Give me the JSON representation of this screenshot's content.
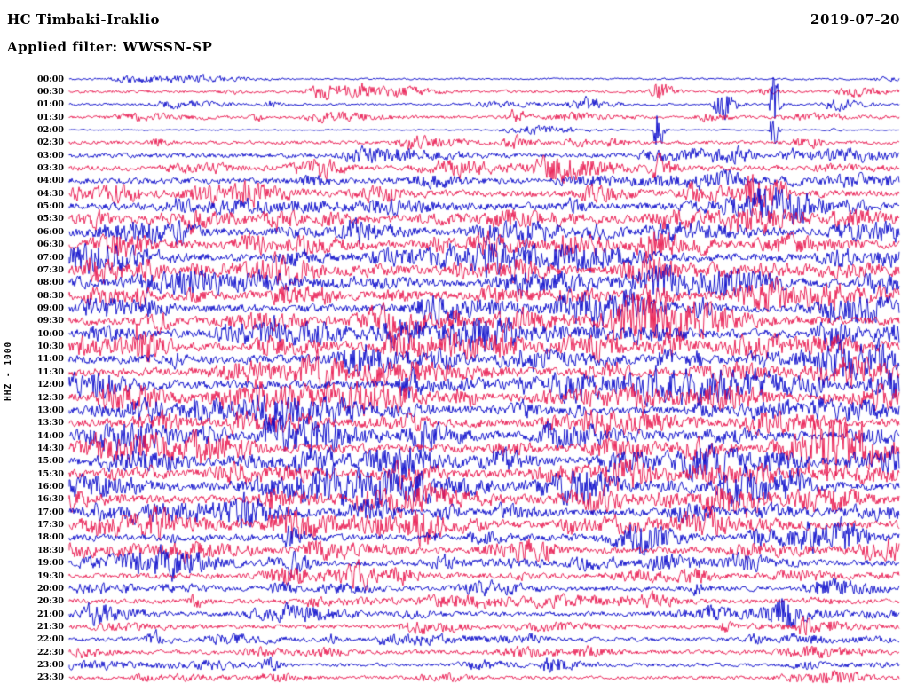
{
  "header": {
    "station": "HC Timbaki-Iraklio",
    "date": "2019-07-20",
    "filter": "Applied filter: WWSSN-SP",
    "axis_label": "HHZ - 1000"
  },
  "chart_data": {
    "type": "line",
    "subtype": "helicorder-seismogram",
    "title": "HC Timbaki-Iraklio",
    "date": "2019-07-20",
    "filter": "WWSSN-SP",
    "channel": "HHZ - 1000",
    "row_interval_minutes": 30,
    "x_axis": "time within each 30-minute row",
    "grid": false,
    "legend": false,
    "colors": {
      "blue": "#0000c8",
      "red": "#e8114a"
    },
    "rows": [
      {
        "t": "00:00",
        "color": "blue",
        "base": 0.8,
        "density": 5,
        "burst": 2.5
      },
      {
        "t": "00:30",
        "color": "red",
        "base": 1.2,
        "density": 8,
        "burst": 3
      },
      {
        "t": "01:00",
        "color": "blue",
        "base": 1.0,
        "density": 7,
        "burst": 3
      },
      {
        "t": "01:30",
        "color": "red",
        "base": 1.2,
        "density": 8,
        "burst": 3
      },
      {
        "t": "02:00",
        "color": "blue",
        "base": 0.6,
        "density": 4,
        "burst": 2
      },
      {
        "t": "02:30",
        "color": "red",
        "base": 1.6,
        "density": 9,
        "burst": 3
      },
      {
        "t": "03:00",
        "color": "blue",
        "base": 2.0,
        "density": 10,
        "burst": 3.5
      },
      {
        "t": "03:30",
        "color": "red",
        "base": 2.3,
        "density": 11,
        "burst": 4
      },
      {
        "t": "04:00",
        "color": "blue",
        "base": 2.6,
        "density": 12,
        "burst": 4.5
      },
      {
        "t": "04:30",
        "color": "red",
        "base": 2.8,
        "density": 12,
        "burst": 5
      },
      {
        "t": "05:00",
        "color": "blue",
        "base": 3.0,
        "density": 13,
        "burst": 5
      },
      {
        "t": "05:30",
        "color": "red",
        "base": 3.2,
        "density": 14,
        "burst": 5.5
      },
      {
        "t": "06:00",
        "color": "blue",
        "base": 3.4,
        "density": 14,
        "burst": 5.5
      },
      {
        "t": "06:30",
        "color": "red",
        "base": 3.4,
        "density": 14,
        "burst": 6
      },
      {
        "t": "07:00",
        "color": "blue",
        "base": 3.5,
        "density": 15,
        "burst": 6
      },
      {
        "t": "07:30",
        "color": "red",
        "base": 3.5,
        "density": 16,
        "burst": 6
      },
      {
        "t": "08:00",
        "color": "blue",
        "base": 3.5,
        "density": 16,
        "burst": 6
      },
      {
        "t": "08:30",
        "color": "red",
        "base": 3.5,
        "density": 16,
        "burst": 6
      },
      {
        "t": "09:00",
        "color": "blue",
        "base": 3.5,
        "density": 16,
        "burst": 6
      },
      {
        "t": "09:30",
        "color": "red",
        "base": 3.5,
        "density": 16,
        "burst": 6
      },
      {
        "t": "10:00",
        "color": "blue",
        "base": 3.6,
        "density": 16,
        "burst": 6.5
      },
      {
        "t": "10:30",
        "color": "red",
        "base": 3.6,
        "density": 17,
        "burst": 6.5
      },
      {
        "t": "11:00",
        "color": "blue",
        "base": 3.6,
        "density": 16,
        "burst": 6
      },
      {
        "t": "11:30",
        "color": "red",
        "base": 3.6,
        "density": 16,
        "burst": 6
      },
      {
        "t": "12:00",
        "color": "blue",
        "base": 3.6,
        "density": 16,
        "burst": 6.5
      },
      {
        "t": "12:30",
        "color": "red",
        "base": 3.6,
        "density": 17,
        "burst": 7
      },
      {
        "t": "13:00",
        "color": "blue",
        "base": 3.6,
        "density": 16,
        "burst": 6
      },
      {
        "t": "13:30",
        "color": "red",
        "base": 3.6,
        "density": 16,
        "burst": 6.5
      },
      {
        "t": "14:00",
        "color": "blue",
        "base": 3.6,
        "density": 16,
        "burst": 6
      },
      {
        "t": "14:30",
        "color": "red",
        "base": 3.6,
        "density": 16,
        "burst": 6.5
      },
      {
        "t": "15:00",
        "color": "blue",
        "base": 3.6,
        "density": 16,
        "burst": 6.5
      },
      {
        "t": "15:30",
        "color": "red",
        "base": 3.6,
        "density": 16,
        "burst": 6
      },
      {
        "t": "16:00",
        "color": "blue",
        "base": 3.6,
        "density": 16,
        "burst": 6.5
      },
      {
        "t": "16:30",
        "color": "red",
        "base": 3.4,
        "density": 16,
        "burst": 6
      },
      {
        "t": "17:00",
        "color": "blue",
        "base": 3.3,
        "density": 15,
        "burst": 5.5
      },
      {
        "t": "17:30",
        "color": "red",
        "base": 3.3,
        "density": 15,
        "burst": 6
      },
      {
        "t": "18:00",
        "color": "blue",
        "base": 3.0,
        "density": 13,
        "burst": 5
      },
      {
        "t": "18:30",
        "color": "red",
        "base": 3.0,
        "density": 13,
        "burst": 5
      },
      {
        "t": "19:00",
        "color": "blue",
        "base": 2.7,
        "density": 12,
        "burst": 5
      },
      {
        "t": "19:30",
        "color": "red",
        "base": 2.4,
        "density": 11,
        "burst": 4
      },
      {
        "t": "20:00",
        "color": "blue",
        "base": 2.1,
        "density": 10,
        "burst": 4
      },
      {
        "t": "20:30",
        "color": "red",
        "base": 2.1,
        "density": 10,
        "burst": 4
      },
      {
        "t": "21:00",
        "color": "blue",
        "base": 2.0,
        "density": 10,
        "burst": 4.5
      },
      {
        "t": "21:30",
        "color": "red",
        "base": 1.8,
        "density": 9,
        "burst": 3.5
      },
      {
        "t": "22:00",
        "color": "blue",
        "base": 1.8,
        "density": 9,
        "burst": 3.5
      },
      {
        "t": "22:30",
        "color": "red",
        "base": 1.8,
        "density": 9,
        "burst": 3.5
      },
      {
        "t": "23:00",
        "color": "blue",
        "base": 1.5,
        "density": 7,
        "burst": 3
      },
      {
        "t": "23:30",
        "color": "red",
        "base": 1.5,
        "density": 7,
        "burst": 3
      }
    ],
    "events": [
      {
        "row": 2,
        "x": 0.846,
        "amp": 30
      },
      {
        "row": 4,
        "x": 0.846,
        "amp": 18
      },
      {
        "row": 4,
        "x": 0.707,
        "amp": 24
      },
      {
        "row": 2,
        "x": 0.784,
        "amp": 12
      },
      {
        "row": 1,
        "x": 0.707,
        "amp": 8
      },
      {
        "row": 3,
        "x": 0.535,
        "amp": 6
      },
      {
        "row": 7,
        "x": 0.707,
        "amp": 9
      },
      {
        "row": 9,
        "x": 0.82,
        "amp": 9
      },
      {
        "row": 9,
        "x": 0.85,
        "amp": 8
      },
      {
        "row": 21,
        "x": 0.082,
        "amp": 9
      },
      {
        "row": 24,
        "x": 0.41,
        "amp": 8
      },
      {
        "row": 25,
        "x": 0.227,
        "amp": 9
      },
      {
        "row": 25,
        "x": 0.47,
        "amp": 8
      },
      {
        "row": 28,
        "x": 0.237,
        "amp": 8
      },
      {
        "row": 30,
        "x": 0.4,
        "amp": 9
      },
      {
        "row": 32,
        "x": 0.868,
        "amp": 9
      },
      {
        "row": 35,
        "x": 0.6,
        "amp": 8
      },
      {
        "row": 36,
        "x": 0.264,
        "amp": 8
      },
      {
        "row": 38,
        "x": 0.27,
        "amp": 9
      },
      {
        "row": 42,
        "x": 0.857,
        "amp": 8
      },
      {
        "row": 43,
        "x": 0.883,
        "amp": 7
      },
      {
        "row": 44,
        "x": 0.1,
        "amp": 6
      },
      {
        "row": 46,
        "x": 0.577,
        "amp": 7
      },
      {
        "row": 46,
        "x": 0.237,
        "amp": 5
      }
    ]
  }
}
